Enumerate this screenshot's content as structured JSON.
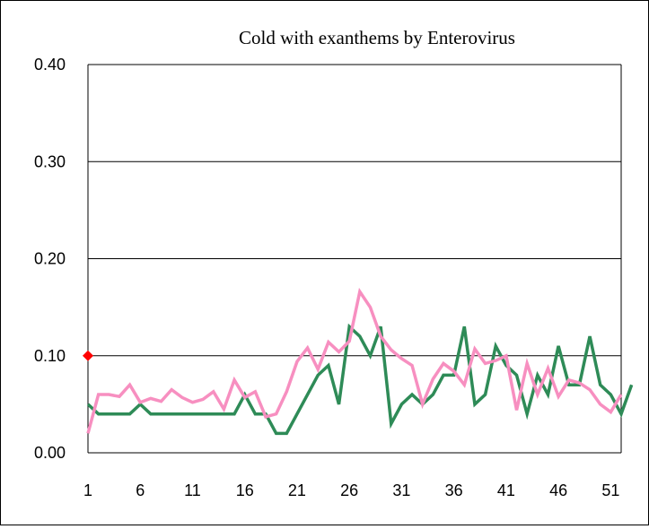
{
  "chart_data": {
    "type": "line",
    "title": "Cold with exanthems by Enterovirus",
    "xlabel": "",
    "ylabel": "",
    "xlim": [
      1,
      52
    ],
    "ylim": [
      0,
      0.4
    ],
    "x_ticks": [
      "1",
      "6",
      "11",
      "16",
      "21",
      "26",
      "31",
      "36",
      "41",
      "46",
      "51"
    ],
    "y_ticks": [
      "0.00",
      "0.10",
      "0.20",
      "0.30",
      "0.40"
    ],
    "grid": "horizontal",
    "legend": "none",
    "series": [
      {
        "color": "#2e8b57",
        "values": [
          0.05,
          0.04,
          0.04,
          0.04,
          0.04,
          0.05,
          0.04,
          0.04,
          0.04,
          0.04,
          0.04,
          0.04,
          0.04,
          0.04,
          0.04,
          0.06,
          0.04,
          0.04,
          0.02,
          0.02,
          0.04,
          0.06,
          0.08,
          0.09,
          0.05,
          0.13,
          0.12,
          0.1,
          0.13,
          0.03,
          0.05,
          0.06,
          0.05,
          0.06,
          0.08,
          0.08,
          0.13,
          0.05,
          0.06,
          0.11,
          0.09,
          0.08,
          0.04,
          0.08,
          0.06,
          0.11,
          0.07,
          0.07,
          0.12,
          0.07,
          0.06,
          0.04,
          0.07
        ]
      },
      {
        "color": "#f78fc0",
        "values": [
          0.02,
          0.06,
          0.06,
          0.058,
          0.07,
          0.052,
          0.056,
          0.053,
          0.065,
          0.057,
          0.052,
          0.055,
          0.063,
          0.045,
          0.075,
          0.057,
          0.063,
          0.037,
          0.04,
          0.063,
          0.094,
          0.108,
          0.086,
          0.114,
          0.104,
          0.115,
          0.166,
          0.15,
          0.12,
          0.106,
          0.097,
          0.09,
          0.05,
          0.076,
          0.092,
          0.084,
          0.07,
          0.107,
          0.092,
          0.095,
          0.1,
          0.044,
          0.092,
          0.06,
          0.087,
          0.058,
          0.075,
          0.072,
          0.065,
          0.05,
          0.042,
          0.06
        ]
      },
      {
        "color": "#ff0000",
        "marker": "diamond",
        "values": [
          0.1
        ]
      }
    ]
  }
}
